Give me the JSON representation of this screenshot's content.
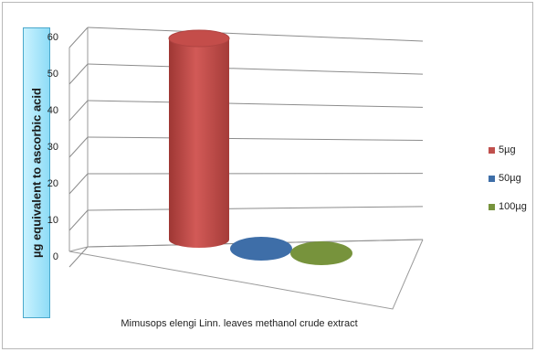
{
  "chart_data": {
    "type": "bar",
    "categories": [
      "Mimusops elengi Linn. leaves  methanol  crude extract"
    ],
    "series": [
      {
        "name": "5µg",
        "values": [
          55
        ],
        "color": "#c0504d"
      },
      {
        "name": "50µg",
        "values": [
          0
        ],
        "color": "#3e6ea8"
      },
      {
        "name": "100µg",
        "values": [
          0
        ],
        "color": "#77933c"
      }
    ],
    "ylabel": "µg  equivalent to ascorbic acid",
    "xlabel": "",
    "ylim": [
      0,
      60
    ],
    "yticks": [
      "0",
      "10",
      "20",
      "30",
      "40",
      "50",
      "60"
    ],
    "legend_position": "right",
    "grid": true,
    "style": "3d-cylinder"
  }
}
